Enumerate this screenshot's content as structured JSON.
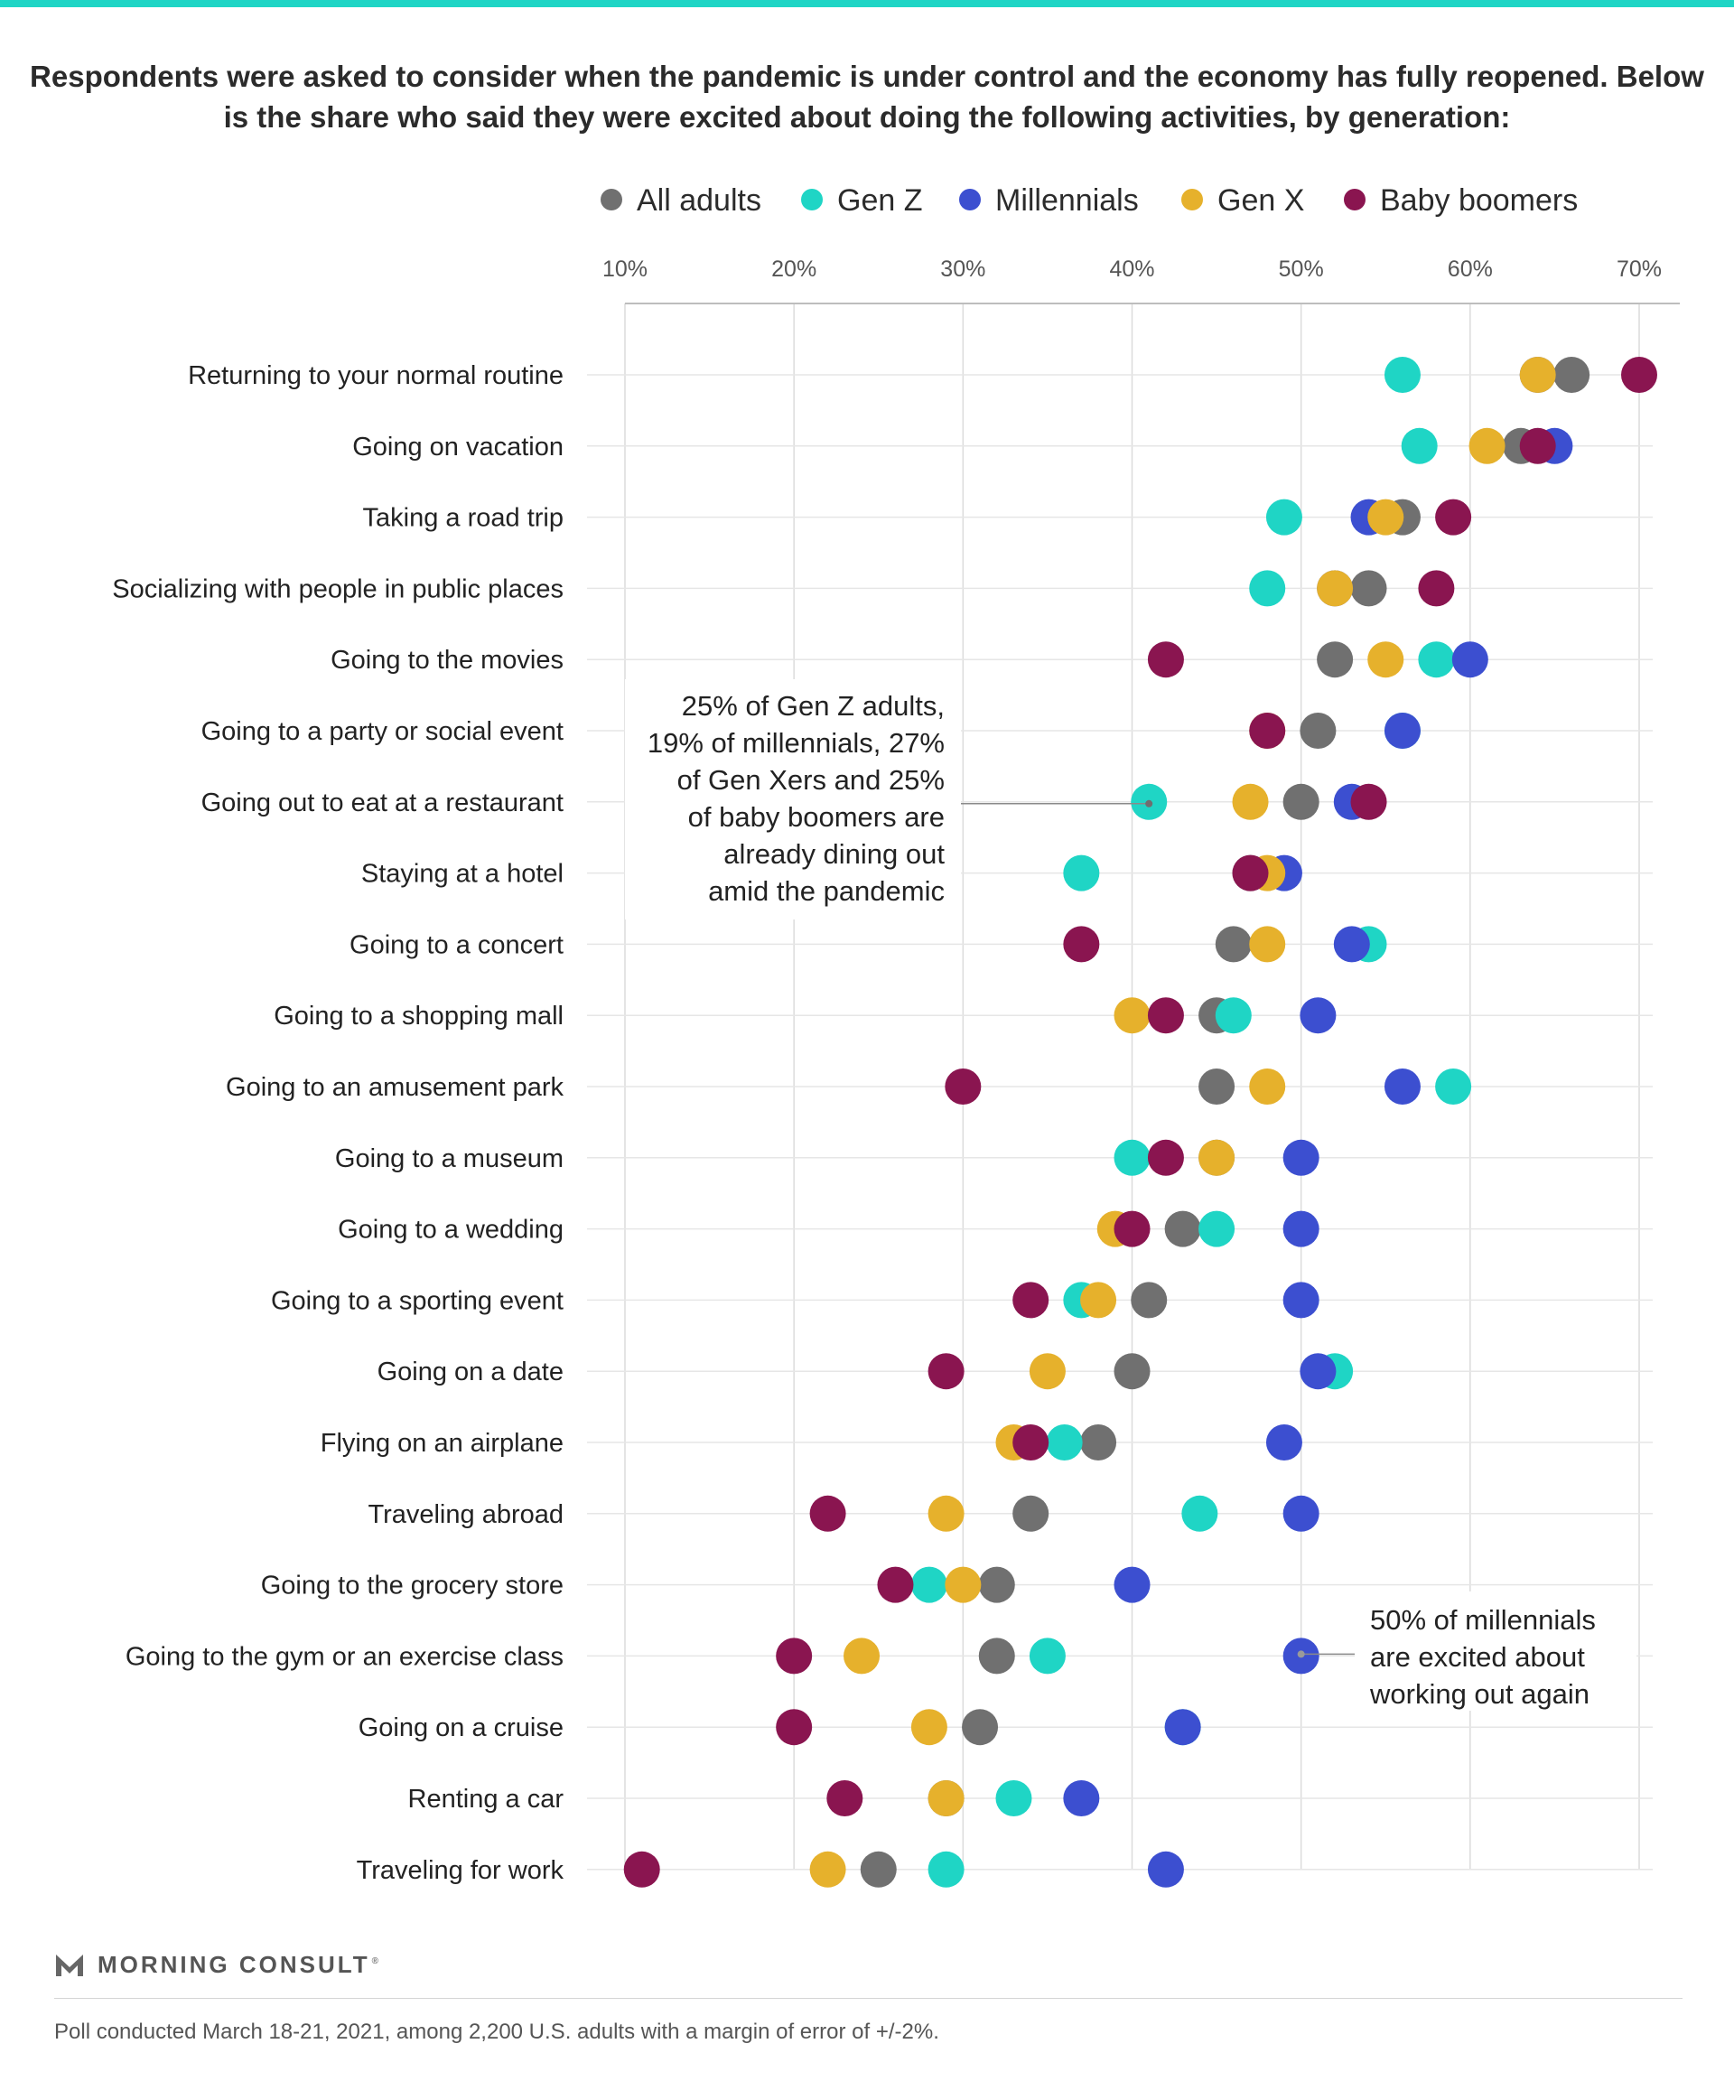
{
  "title": "Respondents were asked to consider when the pandemic is under control and the economy has fully reopened. Below is the share who said they were excited about doing the following activities, by generation:",
  "colors": {
    "top_bar": "#1fd5c5",
    "All adults": "#707070",
    "Gen Z": "#1fd5c5",
    "Millennials": "#3c4fd0",
    "Gen X": "#e6b12c",
    "Baby boomers": "#8a1550"
  },
  "chart_data": {
    "type": "scatter",
    "xlim": [
      10,
      70
    ],
    "x_ticks": [
      "10%",
      "20%",
      "30%",
      "40%",
      "50%",
      "60%",
      "70%"
    ],
    "legend_placement": "top",
    "grid": true,
    "categories": [
      "Returning to your normal routine",
      "Going on vacation",
      "Taking a road trip",
      "Socializing with people in public places",
      "Going to the movies",
      "Going to a party or social event",
      "Going out to eat at a restaurant",
      "Staying at a hotel",
      "Going to a concert",
      "Going to a shopping mall",
      "Going to an amusement park",
      "Going to a museum",
      "Going to a wedding",
      "Going to a sporting event",
      "Going on a date",
      "Flying on an airplane",
      "Traveling abroad",
      "Going to the grocery store",
      "Going to the gym or an exercise class",
      "Going on a cruise",
      "Renting a car",
      "Traveling for work"
    ],
    "series": [
      {
        "name": "All adults",
        "values": [
          66,
          63,
          56,
          54,
          52,
          51,
          50,
          47,
          46,
          45,
          45,
          45,
          43,
          41,
          40,
          38,
          34,
          32,
          32,
          31,
          29,
          25
        ]
      },
      {
        "name": "Gen Z",
        "values": [
          56,
          57,
          49,
          48,
          58,
          56,
          41,
          37,
          54,
          46,
          59,
          40,
          45,
          37,
          52,
          36,
          44,
          28,
          35,
          43,
          33,
          29
        ]
      },
      {
        "name": "Millennials",
        "values": [
          64,
          65,
          54,
          52,
          60,
          56,
          53,
          49,
          53,
          51,
          56,
          50,
          50,
          50,
          51,
          49,
          50,
          40,
          50,
          43,
          37,
          42
        ]
      },
      {
        "name": "Gen X",
        "values": [
          64,
          61,
          55,
          52,
          55,
          48,
          47,
          48,
          48,
          40,
          48,
          45,
          39,
          38,
          35,
          33,
          29,
          30,
          24,
          28,
          29,
          22
        ]
      },
      {
        "name": "Baby boomers",
        "values": [
          70,
          64,
          59,
          58,
          42,
          48,
          54,
          47,
          37,
          42,
          30,
          42,
          40,
          34,
          29,
          34,
          22,
          26,
          20,
          20,
          23,
          11
        ]
      }
    ],
    "annotations": [
      {
        "lines": [
          "25% of Gen Z adults,",
          "19% of millennials, 27%",
          "of Gen Xers and 25%",
          "of baby boomers are",
          "already dining out",
          "amid the pandemic"
        ],
        "category": "Going out to eat at a restaurant",
        "x": 41
      },
      {
        "lines": [
          "50% of millennials",
          "are excited about",
          "working out again"
        ],
        "category": "Going to the gym or an exercise class",
        "x": 50
      }
    ]
  },
  "footer": {
    "brand": "MORNING CONSULT",
    "note": "Poll conducted March 18-21, 2021, among 2,200 U.S. adults with a margin of error of +/-2%."
  }
}
